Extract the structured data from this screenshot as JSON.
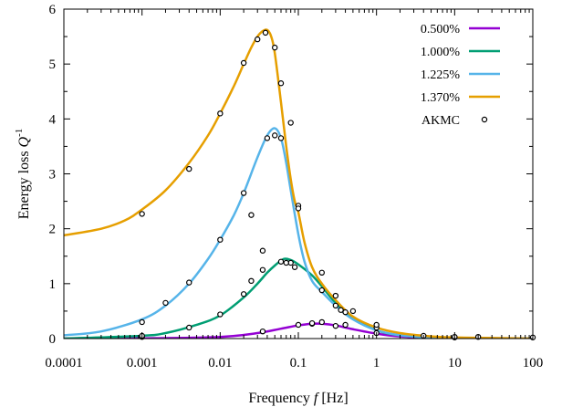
{
  "chart_data": {
    "type": "line",
    "x_scale": "log",
    "xlim": [
      0.0001,
      100
    ],
    "ylim": [
      0,
      6
    ],
    "xlabel_text": "Frequency ",
    "xlabel_var": "f",
    "xlabel_unit": " [Hz]",
    "ylabel_text": "Energy loss ",
    "ylabel_var": "Q",
    "ylabel_sup": "-1",
    "x_ticks": [
      {
        "value": 0.0001,
        "label": "0.0001"
      },
      {
        "value": 0.001,
        "label": "0.001"
      },
      {
        "value": 0.01,
        "label": "0.01"
      },
      {
        "value": 0.1,
        "label": "0.1"
      },
      {
        "value": 1,
        "label": "1"
      },
      {
        "value": 10,
        "label": "10"
      },
      {
        "value": 100,
        "label": "100"
      }
    ],
    "y_ticks": [
      {
        "value": 0,
        "label": "0"
      },
      {
        "value": 1,
        "label": "1"
      },
      {
        "value": 2,
        "label": "2"
      },
      {
        "value": 3,
        "label": "3"
      },
      {
        "value": 4,
        "label": "4"
      },
      {
        "value": 5,
        "label": "5"
      },
      {
        "value": 6,
        "label": "6"
      }
    ],
    "legend_position": "top-right",
    "series": [
      {
        "name": "0.500%",
        "color": "#9400d3",
        "x": [
          0.0001,
          0.001,
          0.01,
          0.03,
          0.06,
          0.1,
          0.15,
          0.2,
          0.3,
          0.5,
          1,
          2,
          5,
          10,
          100
        ],
        "y": [
          0.0,
          0.005,
          0.03,
          0.1,
          0.18,
          0.24,
          0.27,
          0.27,
          0.24,
          0.17,
          0.09,
          0.04,
          0.015,
          0.007,
          0.0
        ]
      },
      {
        "name": "1.000%",
        "color": "#009e73",
        "x": [
          0.0001,
          0.001,
          0.002,
          0.005,
          0.01,
          0.02,
          0.03,
          0.04,
          0.05,
          0.065,
          0.08,
          0.1,
          0.15,
          0.2,
          0.3,
          0.5,
          1,
          2,
          5,
          10,
          100
        ],
        "y": [
          0.0,
          0.05,
          0.1,
          0.25,
          0.42,
          0.75,
          1.0,
          1.2,
          1.33,
          1.45,
          1.43,
          1.35,
          1.15,
          0.95,
          0.65,
          0.38,
          0.15,
          0.06,
          0.02,
          0.01,
          0.0
        ]
      },
      {
        "name": "1.225%",
        "color": "#56b4e9",
        "x": [
          0.0001,
          0.0003,
          0.001,
          0.002,
          0.004,
          0.007,
          0.01,
          0.015,
          0.02,
          0.03,
          0.04,
          0.05,
          0.06,
          0.07,
          0.08,
          0.1,
          0.12,
          0.15,
          0.2,
          0.3,
          0.5,
          1,
          2,
          5,
          10,
          100
        ],
        "y": [
          0.06,
          0.13,
          0.35,
          0.6,
          1.0,
          1.45,
          1.8,
          2.25,
          2.65,
          3.3,
          3.7,
          3.83,
          3.65,
          3.2,
          2.7,
          1.9,
          1.4,
          1.05,
          0.85,
          0.6,
          0.35,
          0.15,
          0.06,
          0.02,
          0.01,
          0.0
        ]
      },
      {
        "name": "1.370%",
        "color": "#e69f00",
        "x": [
          0.0001,
          0.0003,
          0.0006,
          0.001,
          0.002,
          0.004,
          0.007,
          0.01,
          0.015,
          0.02,
          0.025,
          0.03,
          0.035,
          0.04,
          0.045,
          0.05,
          0.06,
          0.07,
          0.08,
          0.09,
          0.1,
          0.12,
          0.15,
          0.2,
          0.3,
          0.5,
          1,
          2,
          5,
          10,
          100
        ],
        "y": [
          1.88,
          2.0,
          2.15,
          2.35,
          2.7,
          3.2,
          3.7,
          4.1,
          4.6,
          5.0,
          5.3,
          5.5,
          5.6,
          5.62,
          5.5,
          5.2,
          4.3,
          3.5,
          2.9,
          2.5,
          2.3,
          1.75,
          1.3,
          1.0,
          0.7,
          0.4,
          0.2,
          0.1,
          0.04,
          0.02,
          0.0
        ]
      }
    ],
    "markers": {
      "name": "AKMC",
      "x": [
        0.001,
        0.004,
        0.01,
        0.02,
        0.03,
        0.038,
        0.05,
        0.06,
        0.08,
        0.1,
        0.001,
        0.001,
        0.002,
        0.004,
        0.01,
        0.02,
        0.025,
        0.035,
        0.04,
        0.05,
        0.06,
        0.08,
        0.1,
        0.2,
        0.3,
        0.4,
        0.5,
        0.001,
        0.004,
        0.01,
        0.02,
        0.025,
        0.035,
        0.06,
        0.07,
        0.09,
        0.1,
        0.15,
        0.2,
        0.3,
        0.35,
        0.4,
        1,
        1,
        1,
        4,
        10,
        10,
        20,
        100,
        0.035,
        0.2,
        0.3,
        0.15
      ],
      "y": [
        2.27,
        3.09,
        4.1,
        5.02,
        5.45,
        5.57,
        5.3,
        4.65,
        3.93,
        2.42,
        0.03,
        0.3,
        0.65,
        1.02,
        1.8,
        2.65,
        2.25,
        1.6,
        3.65,
        3.7,
        3.65,
        1.38,
        2.37,
        1.2,
        0.78,
        0.48,
        0.5,
        0.05,
        0.2,
        0.44,
        0.81,
        1.05,
        1.25,
        1.4,
        1.38,
        1.3,
        0.25,
        0.27,
        0.88,
        0.6,
        0.52,
        0.25,
        0.2,
        0.25,
        0.1,
        0.05,
        0.02,
        0.03,
        0.03,
        0.02,
        0.13,
        0.3,
        0.23,
        0.28
      ]
    }
  }
}
